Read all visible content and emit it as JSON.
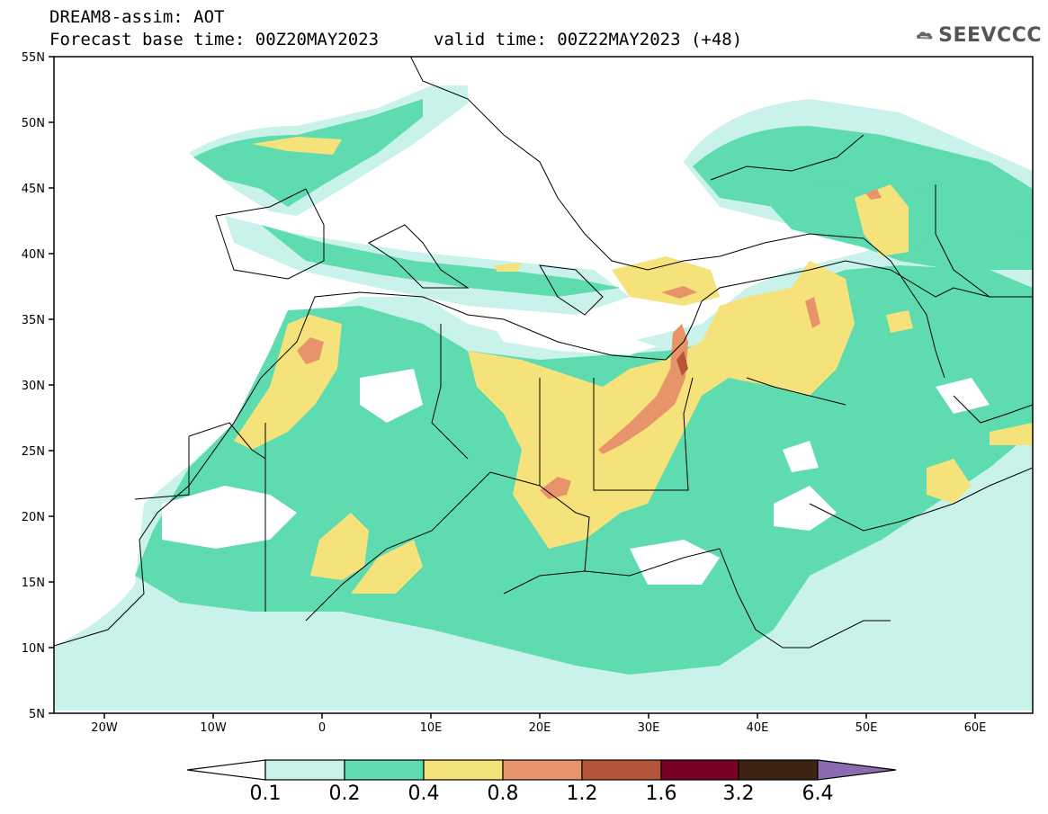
{
  "header": {
    "line1": "DREAM8-assim: AOT",
    "line2": "Forecast base time: 00Z20MAY2023",
    "line3": "valid time: 00Z22MAY2023 (+48)"
  },
  "logo": {
    "text": "SEEVCCC",
    "icon": "cloud-icon"
  },
  "axes": {
    "lat_labels": [
      "55N",
      "50N",
      "45N",
      "40N",
      "35N",
      "30N",
      "25N",
      "20N",
      "15N",
      "10N",
      "5N"
    ],
    "lon_labels": [
      "20W",
      "10W",
      "0",
      "10E",
      "20E",
      "30E",
      "40E",
      "50E",
      "60E"
    ]
  },
  "colorbar": {
    "labels": [
      "0.1",
      "0.2",
      "0.4",
      "0.8",
      "1.2",
      "1.6",
      "3.2",
      "6.4"
    ],
    "colors": [
      "#ffffff",
      "#c9f2ea",
      "#5fdbb0",
      "#f6e27a",
      "#e8946a",
      "#b5533b",
      "#7a0024",
      "#3d2412",
      "#8c6bb0"
    ]
  }
}
